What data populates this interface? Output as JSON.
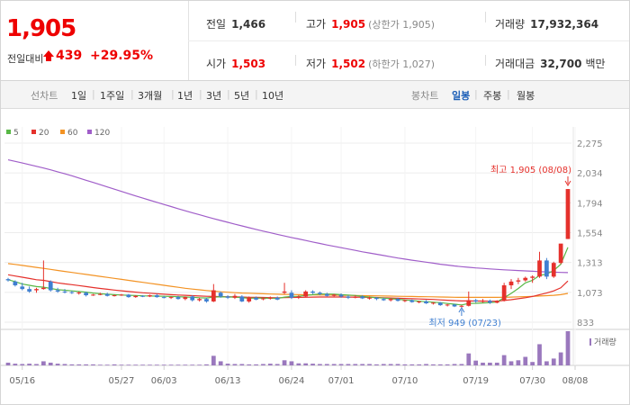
{
  "header": {
    "price": "1,905",
    "change_label": "전일대비",
    "change_value": "439",
    "change_rate": "+29.95%",
    "prev_close_label": "전일",
    "prev_close": "1,466",
    "high_label": "고가",
    "high": "1,905",
    "upper_limit_note": "(상한가 1,905)",
    "volume_label": "거래량",
    "volume": "17,932,364",
    "open_label": "시가",
    "open": "1,503",
    "low_label": "저가",
    "low": "1,502",
    "lower_limit_note": "(하한가 1,027)",
    "amount_label": "거래대금",
    "amount": "32,700",
    "amount_unit": "백만"
  },
  "period_bar": {
    "line_chart_label": "선차트",
    "line_periods": [
      "1일",
      "1주일",
      "3개월",
      "1년",
      "3년",
      "5년",
      "10년"
    ],
    "candle_chart_label": "봉차트",
    "candle_periods": [
      "일봉",
      "주봉",
      "월봉"
    ],
    "selected_candle": "일봉"
  },
  "colors": {
    "up": "#e5312c",
    "down": "#3f7fd1",
    "ma5": "#58b846",
    "ma20": "#e5312c",
    "ma60": "#f39324",
    "ma120": "#a05ec9",
    "volume": "#9a78bd"
  },
  "chart_data": {
    "type": "candlestick",
    "ma_legend": [
      "5",
      "20",
      "60",
      "120"
    ],
    "y_ticks": [
      "2,275",
      "2,034",
      "1,794",
      "1,554",
      "1,313",
      "1,073",
      "833"
    ],
    "ylim": [
      833,
      2275
    ],
    "x_ticks": [
      "05/16",
      "05/27",
      "06/03",
      "06/13",
      "06/24",
      "07/01",
      "07/10",
      "07/19",
      "07/30",
      "08/08"
    ],
    "high_annotation": "최고 1,905 (08/08)",
    "low_annotation": "최저 949 (07/23)",
    "volume_label": "거래량",
    "candles": [
      {
        "o": 1180,
        "h": 1190,
        "l": 1160,
        "c": 1170
      },
      {
        "o": 1160,
        "h": 1170,
        "l": 1120,
        "c": 1130
      },
      {
        "o": 1120,
        "h": 1150,
        "l": 1090,
        "c": 1100
      },
      {
        "o": 1100,
        "h": 1120,
        "l": 1070,
        "c": 1080
      },
      {
        "o": 1090,
        "h": 1110,
        "l": 1070,
        "c": 1100
      },
      {
        "o": 1100,
        "h": 1330,
        "l": 1095,
        "c": 1110
      },
      {
        "o": 1160,
        "h": 1170,
        "l": 1080,
        "c": 1090
      },
      {
        "o": 1090,
        "h": 1110,
        "l": 1070,
        "c": 1080
      },
      {
        "o": 1080,
        "h": 1100,
        "l": 1065,
        "c": 1075
      },
      {
        "o": 1075,
        "h": 1085,
        "l": 1060,
        "c": 1070
      },
      {
        "o": 1065,
        "h": 1080,
        "l": 1055,
        "c": 1072
      },
      {
        "o": 1070,
        "h": 1080,
        "l": 1040,
        "c": 1050
      },
      {
        "o": 1050,
        "h": 1060,
        "l": 1045,
        "c": 1055
      },
      {
        "o": 1055,
        "h": 1070,
        "l": 1050,
        "c": 1060
      },
      {
        "o": 1060,
        "h": 1070,
        "l": 1040,
        "c": 1045
      },
      {
        "o": 1045,
        "h": 1055,
        "l": 1040,
        "c": 1050
      },
      {
        "o": 1050,
        "h": 1060,
        "l": 1045,
        "c": 1055
      },
      {
        "o": 1055,
        "h": 1060,
        "l": 1030,
        "c": 1035
      },
      {
        "o": 1035,
        "h": 1050,
        "l": 1030,
        "c": 1045
      },
      {
        "o": 1045,
        "h": 1050,
        "l": 1035,
        "c": 1040
      },
      {
        "o": 1040,
        "h": 1055,
        "l": 1035,
        "c": 1050
      },
      {
        "o": 1050,
        "h": 1060,
        "l": 1030,
        "c": 1035
      },
      {
        "o": 1035,
        "h": 1045,
        "l": 1025,
        "c": 1030
      },
      {
        "o": 1030,
        "h": 1040,
        "l": 1020,
        "c": 1035
      },
      {
        "o": 1035,
        "h": 1045,
        "l": 1015,
        "c": 1020
      },
      {
        "o": 1020,
        "h": 1040,
        "l": 1010,
        "c": 1035
      },
      {
        "o": 1040,
        "h": 1050,
        "l": 1000,
        "c": 1010
      },
      {
        "o": 1010,
        "h": 1030,
        "l": 1000,
        "c": 1020
      },
      {
        "o": 1020,
        "h": 1030,
        "l": 990,
        "c": 1000
      },
      {
        "o": 1000,
        "h": 1140,
        "l": 995,
        "c": 1090
      },
      {
        "o": 1070,
        "h": 1080,
        "l": 1030,
        "c": 1040
      },
      {
        "o": 1040,
        "h": 1050,
        "l": 1020,
        "c": 1030
      },
      {
        "o": 1030,
        "h": 1060,
        "l": 1020,
        "c": 1045
      },
      {
        "o": 1040,
        "h": 1050,
        "l": 995,
        "c": 1000
      },
      {
        "o": 1000,
        "h": 1040,
        "l": 990,
        "c": 1030
      },
      {
        "o": 1030,
        "h": 1040,
        "l": 1010,
        "c": 1015
      },
      {
        "o": 1020,
        "h": 1030,
        "l": 1010,
        "c": 1025
      },
      {
        "o": 1025,
        "h": 1040,
        "l": 1015,
        "c": 1030
      },
      {
        "o": 1030,
        "h": 1040,
        "l": 1010,
        "c": 1015
      },
      {
        "o": 1070,
        "h": 1150,
        "l": 1060,
        "c": 1080
      },
      {
        "o": 1070,
        "h": 1090,
        "l": 1020,
        "c": 1030
      },
      {
        "o": 1030,
        "h": 1050,
        "l": 1020,
        "c": 1040
      },
      {
        "o": 1040,
        "h": 1090,
        "l": 1035,
        "c": 1080
      },
      {
        "o": 1080,
        "h": 1090,
        "l": 1060,
        "c": 1070
      },
      {
        "o": 1070,
        "h": 1080,
        "l": 1050,
        "c": 1060
      },
      {
        "o": 1060,
        "h": 1070,
        "l": 1040,
        "c": 1045
      },
      {
        "o": 1045,
        "h": 1060,
        "l": 1040,
        "c": 1055
      },
      {
        "o": 1055,
        "h": 1065,
        "l": 1030,
        "c": 1040
      },
      {
        "o": 1040,
        "h": 1050,
        "l": 1020,
        "c": 1030
      },
      {
        "o": 1030,
        "h": 1050,
        "l": 1025,
        "c": 1040
      },
      {
        "o": 1040,
        "h": 1050,
        "l": 1020,
        "c": 1025
      },
      {
        "o": 1025,
        "h": 1040,
        "l": 1015,
        "c": 1030
      },
      {
        "o": 1030,
        "h": 1035,
        "l": 1010,
        "c": 1020
      },
      {
        "o": 1020,
        "h": 1030,
        "l": 1005,
        "c": 1010
      },
      {
        "o": 1010,
        "h": 1025,
        "l": 1000,
        "c": 1020
      },
      {
        "o": 1020,
        "h": 1030,
        "l": 1000,
        "c": 1005
      },
      {
        "o": 1005,
        "h": 1015,
        "l": 995,
        "c": 1010
      },
      {
        "o": 1010,
        "h": 1015,
        "l": 990,
        "c": 995
      },
      {
        "o": 995,
        "h": 1005,
        "l": 985,
        "c": 1000
      },
      {
        "o": 1000,
        "h": 1010,
        "l": 980,
        "c": 985
      },
      {
        "o": 985,
        "h": 995,
        "l": 975,
        "c": 990
      },
      {
        "o": 990,
        "h": 995,
        "l": 965,
        "c": 970
      },
      {
        "o": 970,
        "h": 980,
        "l": 960,
        "c": 975
      },
      {
        "o": 975,
        "h": 980,
        "l": 955,
        "c": 960
      },
      {
        "o": 960,
        "h": 970,
        "l": 949,
        "c": 965
      },
      {
        "o": 965,
        "h": 1080,
        "l": 960,
        "c": 1010
      },
      {
        "o": 1010,
        "h": 1020,
        "l": 990,
        "c": 1000
      },
      {
        "o": 1000,
        "h": 1020,
        "l": 990,
        "c": 1005
      },
      {
        "o": 1005,
        "h": 1015,
        "l": 980,
        "c": 990
      },
      {
        "o": 990,
        "h": 1010,
        "l": 985,
        "c": 1005
      },
      {
        "o": 1005,
        "h": 1150,
        "l": 1000,
        "c": 1130
      },
      {
        "o": 1130,
        "h": 1180,
        "l": 1100,
        "c": 1160
      },
      {
        "o": 1160,
        "h": 1190,
        "l": 1140,
        "c": 1170
      },
      {
        "o": 1170,
        "h": 1200,
        "l": 1160,
        "c": 1190
      },
      {
        "o": 1190,
        "h": 1210,
        "l": 1150,
        "c": 1200
      },
      {
        "o": 1200,
        "h": 1400,
        "l": 1190,
        "c": 1330
      },
      {
        "o": 1330,
        "h": 1350,
        "l": 1180,
        "c": 1200
      },
      {
        "o": 1200,
        "h": 1320,
        "l": 1190,
        "c": 1310
      },
      {
        "o": 1310,
        "h": 1460,
        "l": 1300,
        "c": 1466
      },
      {
        "o": 1503,
        "h": 1905,
        "l": 1502,
        "c": 1905
      }
    ],
    "ma5": [
      1175,
      1160,
      1140,
      1130,
      1120,
      1115,
      1105,
      1095,
      1090,
      1085,
      1080,
      1075,
      1068,
      1062,
      1058,
      1055,
      1052,
      1050,
      1048,
      1045,
      1044,
      1043,
      1042,
      1040,
      1038,
      1036,
      1034,
      1030,
      1028,
      1035,
      1037,
      1036,
      1035,
      1030,
      1026,
      1028,
      1026,
      1026,
      1024,
      1035,
      1040,
      1042,
      1048,
      1055,
      1060,
      1060,
      1058,
      1055,
      1052,
      1048,
      1040,
      1035,
      1030,
      1027,
      1022,
      1018,
      1012,
      1008,
      1002,
      998,
      994,
      990,
      984,
      978,
      972,
      984,
      985,
      988,
      990,
      996,
      1030,
      1065,
      1105,
      1150,
      1170,
      1210,
      1220,
      1250,
      1300,
      1435
    ],
    "ma20": [
      1215,
      1205,
      1195,
      1185,
      1175,
      1170,
      1160,
      1150,
      1142,
      1135,
      1128,
      1120,
      1112,
      1105,
      1098,
      1092,
      1086,
      1080,
      1075,
      1070,
      1066,
      1062,
      1058,
      1055,
      1052,
      1050,
      1047,
      1044,
      1042,
      1040,
      1039,
      1038,
      1037,
      1036,
      1034,
      1033,
      1032,
      1031,
      1030,
      1031,
      1032,
      1033,
      1034,
      1035,
      1036,
      1036,
      1036,
      1036,
      1035,
      1035,
      1034,
      1033,
      1032,
      1030,
      1028,
      1026,
      1024,
      1022,
      1020,
      1018,
      1016,
      1013,
      1010,
      1007,
      1004,
      1004,
      1003,
      1003,
      1002,
      1002,
      1008,
      1014,
      1022,
      1030,
      1040,
      1055,
      1068,
      1085,
      1110,
      1165
    ],
    "ma60": [
      1305,
      1298,
      1290,
      1282,
      1274,
      1266,
      1258,
      1250,
      1242,
      1234,
      1226,
      1218,
      1210,
      1202,
      1194,
      1186,
      1178,
      1170,
      1162,
      1154,
      1146,
      1138,
      1130,
      1122,
      1114,
      1106,
      1100,
      1094,
      1088,
      1083,
      1078,
      1074,
      1071,
      1068,
      1066,
      1064,
      1062,
      1060,
      1058,
      1057,
      1056,
      1055,
      1054,
      1053,
      1052,
      1052,
      1051,
      1050,
      1049,
      1048,
      1047,
      1046,
      1045,
      1044,
      1043,
      1042,
      1041,
      1040,
      1039,
      1038,
      1037,
      1036,
      1035,
      1034,
      1033,
      1033,
      1033,
      1033,
      1033,
      1033,
      1034,
      1035,
      1037,
      1039,
      1041,
      1044,
      1047,
      1050,
      1055,
      1065
    ],
    "ma120": [
      2140,
      2128,
      2115,
      2102,
      2088,
      2074,
      2060,
      2044,
      2028,
      2012,
      1994,
      1976,
      1958,
      1940,
      1922,
      1904,
      1886,
      1868,
      1850,
      1832,
      1815,
      1798,
      1781,
      1764,
      1747,
      1730,
      1714,
      1698,
      1682,
      1667,
      1652,
      1637,
      1622,
      1608,
      1594,
      1580,
      1566,
      1553,
      1540,
      1527,
      1515,
      1503,
      1491,
      1479,
      1467,
      1455,
      1444,
      1433,
      1422,
      1411,
      1400,
      1390,
      1380,
      1370,
      1360,
      1350,
      1341,
      1332,
      1324,
      1316,
      1308,
      1300,
      1293,
      1286,
      1280,
      1275,
      1270,
      1266,
      1262,
      1258,
      1255,
      1252,
      1249,
      1246,
      1243,
      1240,
      1238,
      1236,
      1234,
      1232
    ],
    "volume": [
      0.08,
      0.05,
      0.04,
      0.05,
      0.04,
      0.12,
      0.08,
      0.05,
      0.04,
      0.03,
      0.03,
      0.03,
      0.03,
      0.02,
      0.02,
      0.03,
      0.02,
      0.02,
      0.02,
      0.02,
      0.02,
      0.02,
      0.02,
      0.02,
      0.02,
      0.02,
      0.02,
      0.02,
      0.03,
      0.28,
      0.12,
      0.05,
      0.04,
      0.04,
      0.03,
      0.03,
      0.04,
      0.05,
      0.04,
      0.15,
      0.12,
      0.06,
      0.06,
      0.05,
      0.04,
      0.04,
      0.04,
      0.04,
      0.04,
      0.04,
      0.04,
      0.04,
      0.03,
      0.04,
      0.04,
      0.04,
      0.03,
      0.03,
      0.03,
      0.04,
      0.03,
      0.03,
      0.03,
      0.04,
      0.04,
      0.35,
      0.14,
      0.08,
      0.08,
      0.08,
      0.3,
      0.12,
      0.15,
      0.25,
      0.1,
      0.62,
      0.12,
      0.2,
      0.38,
      1.0
    ]
  }
}
